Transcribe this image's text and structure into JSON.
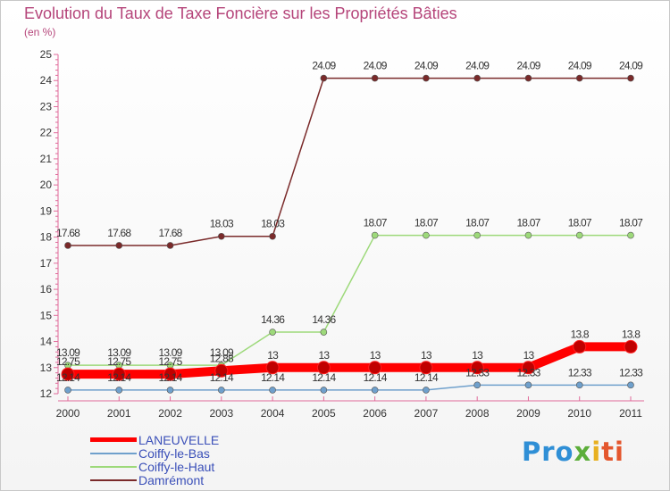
{
  "chart_data": {
    "type": "line",
    "title": "Evolution du Taux de Taxe Foncière sur les Propriétés Bâties",
    "ylabel": "(en %)",
    "xlabel": "",
    "categories": [
      "2000",
      "2001",
      "2002",
      "2003",
      "2004",
      "2005",
      "2006",
      "2007",
      "2008",
      "2009",
      "2010",
      "2011"
    ],
    "ylim": [
      12,
      25
    ],
    "yticks": [
      "12",
      "13",
      "14",
      "15",
      "16",
      "17",
      "18",
      "19",
      "20",
      "21",
      "22",
      "23",
      "24",
      "25"
    ],
    "series": [
      {
        "name": "LANEUVELLE",
        "color": "#ff0000",
        "values": [
          12.75,
          12.75,
          12.75,
          12.88,
          13,
          13,
          13,
          13,
          13,
          13,
          13.8,
          13.8
        ],
        "labels": [
          "12.75",
          "12.75",
          "12.75",
          "12.88",
          "13",
          "13",
          "13",
          "13",
          "13",
          "13",
          "13.8",
          "13.8"
        ]
      },
      {
        "name": "Coiffy-le-Bas",
        "color": "#6fa0cc",
        "values": [
          12.14,
          12.14,
          12.14,
          12.14,
          12.14,
          12.14,
          12.14,
          12.14,
          12.33,
          12.33,
          12.33,
          12.33
        ],
        "labels": [
          "12.14",
          "12.14",
          "12.14",
          "12.14",
          "12.14",
          "12.14",
          "12.14",
          "12.14",
          "12.33",
          "12.33",
          "12.33",
          "12.33"
        ]
      },
      {
        "name": "Coiffy-le-Haut",
        "color": "#9dd97a",
        "values": [
          13.09,
          13.09,
          13.09,
          13.09,
          14.36,
          14.36,
          18.07,
          18.07,
          18.07,
          18.07,
          18.07,
          18.07
        ],
        "labels": [
          "13.09",
          "13.09",
          "13.09",
          "13.09",
          "14.36",
          "14.36",
          "18.07",
          "18.07",
          "18.07",
          "18.07",
          "18.07",
          "18.07"
        ]
      },
      {
        "name": "Damrémont",
        "color": "#7a2a2a",
        "values": [
          17.68,
          17.68,
          17.68,
          18.03,
          18.03,
          24.09,
          24.09,
          24.09,
          24.09,
          24.09,
          24.09,
          24.09
        ],
        "labels": [
          "17.68",
          "17.68",
          "17.68",
          "18.03",
          "18.03",
          "24.09",
          "24.09",
          "24.09",
          "24.09",
          "24.09",
          "24.09",
          "24.09"
        ]
      }
    ],
    "legend": "bottom-left",
    "grid": false
  },
  "logo": {
    "p1": "Pro",
    "p2": "x",
    "p3": "i",
    "p4": "ti"
  }
}
